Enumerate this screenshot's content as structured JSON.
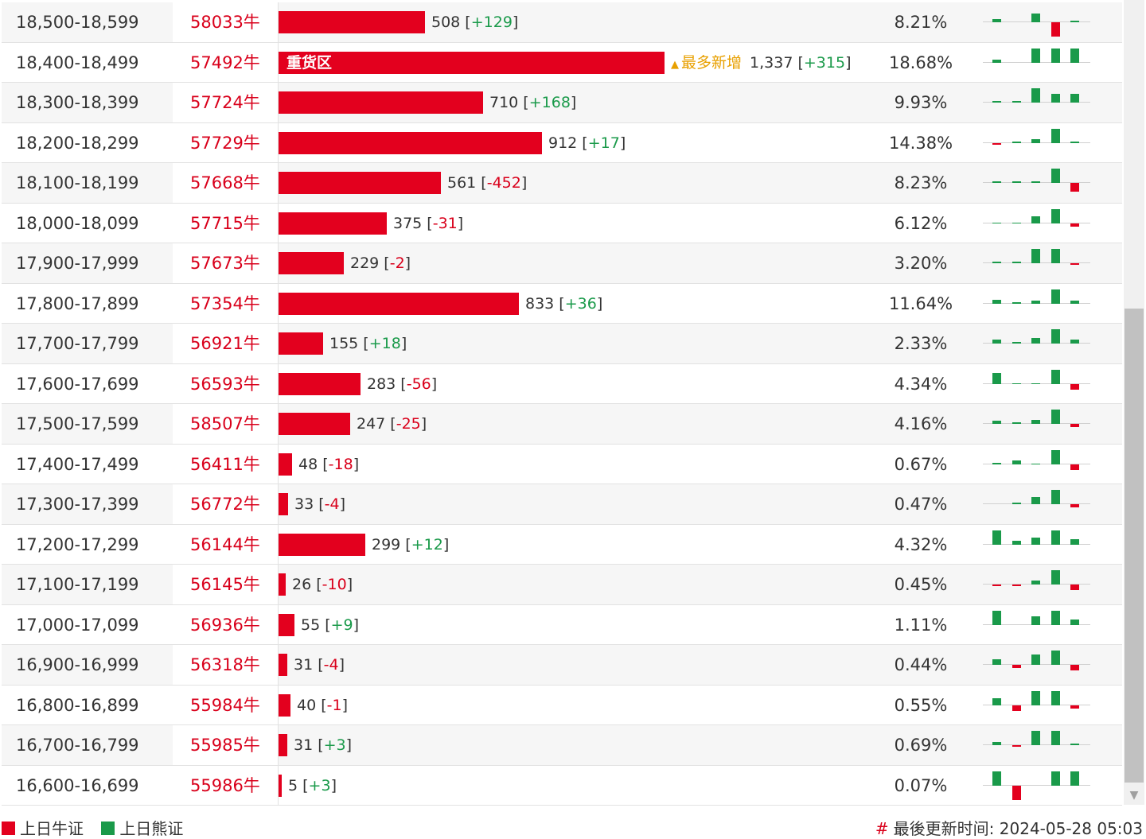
{
  "rows": [
    {
      "range": "18,500-18,599",
      "code": "58033牛",
      "count": "508",
      "change": "+129",
      "pct": "8.21%",
      "bar": 0.38,
      "spark": [
        2,
        0,
        6,
        -10,
        1
      ]
    },
    {
      "range": "18,400-18,499",
      "code": "57492牛",
      "count": "1,337",
      "change": "+315",
      "pct": "18.68%",
      "bar": 1.0,
      "bar_label": "重货区",
      "tag": "最多新增",
      "spark": [
        2,
        0,
        10,
        10,
        10
      ]
    },
    {
      "range": "18,300-18,399",
      "code": "57724牛",
      "count": "710",
      "change": "+168",
      "pct": "9.93%",
      "bar": 0.53,
      "spark": [
        1,
        1,
        10,
        6,
        6
      ]
    },
    {
      "range": "18,200-18,299",
      "code": "57729牛",
      "count": "912",
      "change": "+17",
      "pct": "14.38%",
      "bar": 0.682,
      "spark": [
        -1,
        1,
        3,
        10,
        1
      ]
    },
    {
      "range": "18,100-18,199",
      "code": "57668牛",
      "count": "561",
      "change": "-452",
      "pct": "8.23%",
      "bar": 0.42,
      "spark": [
        1,
        1,
        1,
        10,
        -6
      ]
    },
    {
      "range": "18,000-18,099",
      "code": "57715牛",
      "count": "375",
      "change": "-31",
      "pct": "6.12%",
      "bar": 0.28,
      "spark": [
        0.5,
        0.5,
        5,
        10,
        -2
      ]
    },
    {
      "range": "17,900-17,999",
      "code": "57673牛",
      "count": "229",
      "change": "-2",
      "pct": "3.20%",
      "bar": 0.17,
      "spark": [
        1,
        1,
        10,
        10,
        -1
      ]
    },
    {
      "range": "17,800-17,899",
      "code": "57354牛",
      "count": "833",
      "change": "+36",
      "pct": "11.64%",
      "bar": 0.623,
      "spark": [
        3,
        1,
        2,
        10,
        2
      ]
    },
    {
      "range": "17,700-17,799",
      "code": "56921牛",
      "count": "155",
      "change": "+18",
      "pct": "2.33%",
      "bar": 0.116,
      "spark": [
        3,
        1,
        4,
        10,
        3
      ]
    },
    {
      "range": "17,600-17,699",
      "code": "56593牛",
      "count": "283",
      "change": "-56",
      "pct": "4.34%",
      "bar": 0.212,
      "spark": [
        8,
        0.5,
        0.5,
        10,
        -4
      ]
    },
    {
      "range": "17,500-17,599",
      "code": "58507牛",
      "count": "247",
      "change": "-25",
      "pct": "4.16%",
      "bar": 0.185,
      "spark": [
        2,
        1,
        3,
        10,
        -2
      ]
    },
    {
      "range": "17,400-17,499",
      "code": "56411牛",
      "count": "48",
      "change": "-18",
      "pct": "0.67%",
      "bar": 0.036,
      "spark": [
        1,
        3,
        0.5,
        10,
        -4
      ]
    },
    {
      "range": "17,300-17,399",
      "code": "56772牛",
      "count": "33",
      "change": "-4",
      "pct": "0.47%",
      "bar": 0.025,
      "spark": [
        0,
        1,
        5,
        10,
        -2
      ]
    },
    {
      "range": "17,200-17,299",
      "code": "56144牛",
      "count": "299",
      "change": "+12",
      "pct": "4.32%",
      "bar": 0.224,
      "spark": [
        10,
        3,
        5,
        10,
        4
      ]
    },
    {
      "range": "17,100-17,199",
      "code": "56145牛",
      "count": "26",
      "change": "-10",
      "pct": "0.45%",
      "bar": 0.019,
      "spark": [
        -1,
        -1,
        3,
        10,
        -4
      ]
    },
    {
      "range": "17,000-17,099",
      "code": "56936牛",
      "count": "55",
      "change": "+9",
      "pct": "1.11%",
      "bar": 0.041,
      "spark": [
        10,
        0,
        6,
        10,
        4
      ]
    },
    {
      "range": "16,900-16,999",
      "code": "56318牛",
      "count": "31",
      "change": "-4",
      "pct": "0.44%",
      "bar": 0.023,
      "spark": [
        4,
        -2,
        7,
        10,
        -4
      ]
    },
    {
      "range": "16,800-16,899",
      "code": "55984牛",
      "count": "40",
      "change": "-1",
      "pct": "0.55%",
      "bar": 0.03,
      "spark": [
        5,
        -4,
        10,
        10,
        -2
      ]
    },
    {
      "range": "16,700-16,799",
      "code": "55985牛",
      "count": "31",
      "change": "+3",
      "pct": "0.69%",
      "bar": 0.023,
      "spark": [
        2,
        -1,
        10,
        10,
        1
      ]
    },
    {
      "range": "16,600-16,699",
      "code": "55986牛",
      "count": "5",
      "change": "+3",
      "pct": "0.07%",
      "bar": 0.004,
      "spark": [
        10,
        -10,
        0,
        10,
        10
      ]
    }
  ],
  "legend": {
    "bull": "上日牛证",
    "bear": "上日熊证"
  },
  "footer": {
    "hash": "#",
    "updated": "最後更新时间: 2024-05-28 05:03"
  },
  "colors": {
    "bull": "#e3001e",
    "bear": "#1a9a4a",
    "tag": "#e8a000"
  },
  "icons": {
    "tag_icon": "triangle-up-icon",
    "scroll_down": "chevron-down-icon"
  }
}
